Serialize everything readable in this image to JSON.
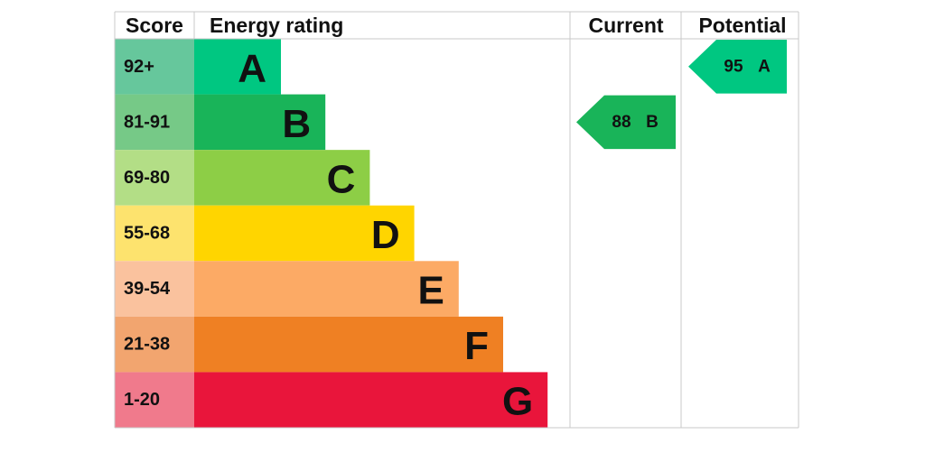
{
  "chart_data": {
    "type": "epc",
    "headers": {
      "score": "Score",
      "rating": "Energy rating",
      "current": "Current",
      "potential": "Potential"
    },
    "bands": [
      {
        "score": "92+",
        "letter": "A",
        "color": "#00c781",
        "score_color": "#66c79c"
      },
      {
        "score": "81-91",
        "letter": "B",
        "color": "#19b459",
        "score_color": "#76c987"
      },
      {
        "score": "69-80",
        "letter": "C",
        "color": "#8dce46",
        "score_color": "#b3de86"
      },
      {
        "score": "55-68",
        "letter": "D",
        "color": "#ffd500",
        "score_color": "#fde36e"
      },
      {
        "score": "39-54",
        "letter": "E",
        "color": "#fcaa65",
        "score_color": "#fac29e"
      },
      {
        "score": "21-38",
        "letter": "F",
        "color": "#ef8023",
        "score_color": "#f2a56f"
      },
      {
        "score": "1-20",
        "letter": "G",
        "color": "#e9153b",
        "score_color": "#f07a8c"
      }
    ],
    "current": {
      "value": 88,
      "letter": "B"
    },
    "potential": {
      "value": 95,
      "letter": "A"
    }
  }
}
